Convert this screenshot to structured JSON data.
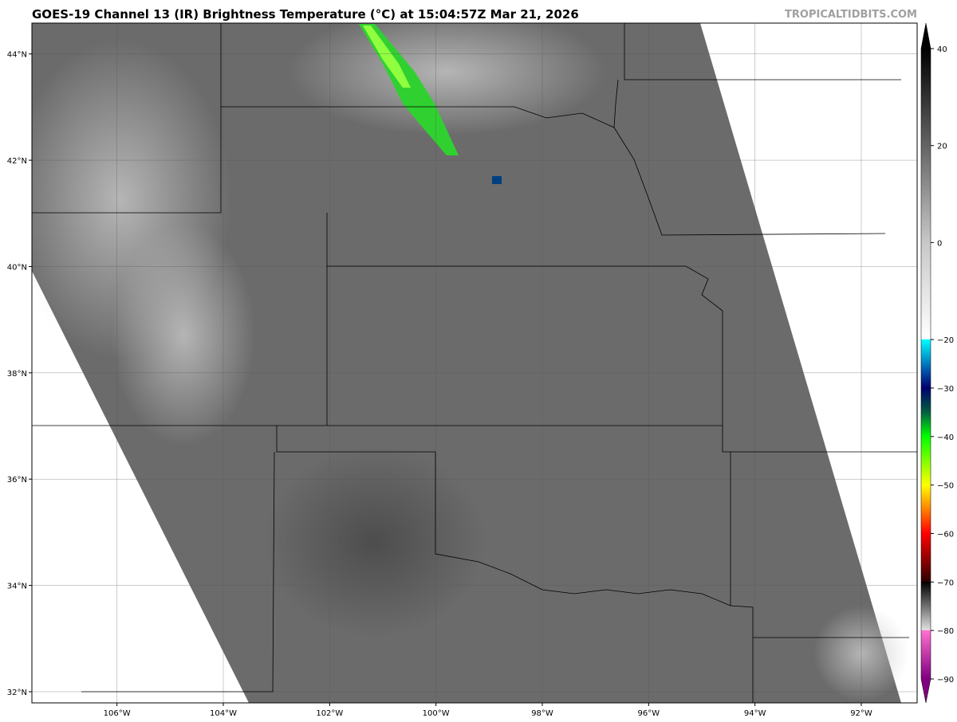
{
  "title": "GOES-19 Channel 13 (IR) Brightness Temperature (°C) at 15:04:57Z Mar 21, 2026",
  "brand": "TROPICALTIDBITS.COM",
  "map": {
    "extent_lon": [
      -107.6,
      -90.95
    ],
    "extent_lat": [
      31.79,
      44.58
    ],
    "lon_ticks": [
      -106,
      -104,
      -102,
      -100,
      -98,
      -96,
      -94,
      -92
    ],
    "lon_tick_labels": [
      "106°W",
      "104°W",
      "102°W",
      "100°W",
      "98°W",
      "96°W",
      "94°W",
      "92°W"
    ],
    "lat_ticks": [
      44,
      42,
      40,
      38,
      36,
      34,
      32
    ],
    "lat_tick_labels": [
      "44°N",
      "42°N",
      "40°N",
      "38°N",
      "36°N",
      "34°N",
      "32°N"
    ],
    "grid": true,
    "background_fill": "#6b6b6b",
    "no_data_fill": "#ffffff"
  },
  "colorbar": {
    "range": [
      -90,
      40
    ],
    "ticks": [
      40,
      20,
      0,
      -20,
      -30,
      -40,
      -50,
      -60,
      -70,
      -80,
      -90
    ],
    "tick_labels": [
      "40",
      "20",
      "0",
      "−20",
      "−30",
      "−40",
      "−50",
      "−60",
      "−70",
      "−80",
      "−90"
    ],
    "stops": [
      {
        "v": 40,
        "c": "#000000"
      },
      {
        "v": 0,
        "c": "#c8c8c8"
      },
      {
        "v": -19.9,
        "c": "#ffffff"
      },
      {
        "v": -20,
        "c": "#00ffff"
      },
      {
        "v": -26,
        "c": "#0060b0"
      },
      {
        "v": -30,
        "c": "#00006e"
      },
      {
        "v": -35,
        "c": "#006040"
      },
      {
        "v": -40,
        "c": "#00ff00"
      },
      {
        "v": -50,
        "c": "#ffff00"
      },
      {
        "v": -55,
        "c": "#ff8000"
      },
      {
        "v": -60,
        "c": "#ff0000"
      },
      {
        "v": -69.9,
        "c": "#300000"
      },
      {
        "v": -70,
        "c": "#000000"
      },
      {
        "v": -79.9,
        "c": "#e0e0e0"
      },
      {
        "v": -80,
        "c": "#ff70d0"
      },
      {
        "v": -90,
        "c": "#800080"
      }
    ]
  }
}
